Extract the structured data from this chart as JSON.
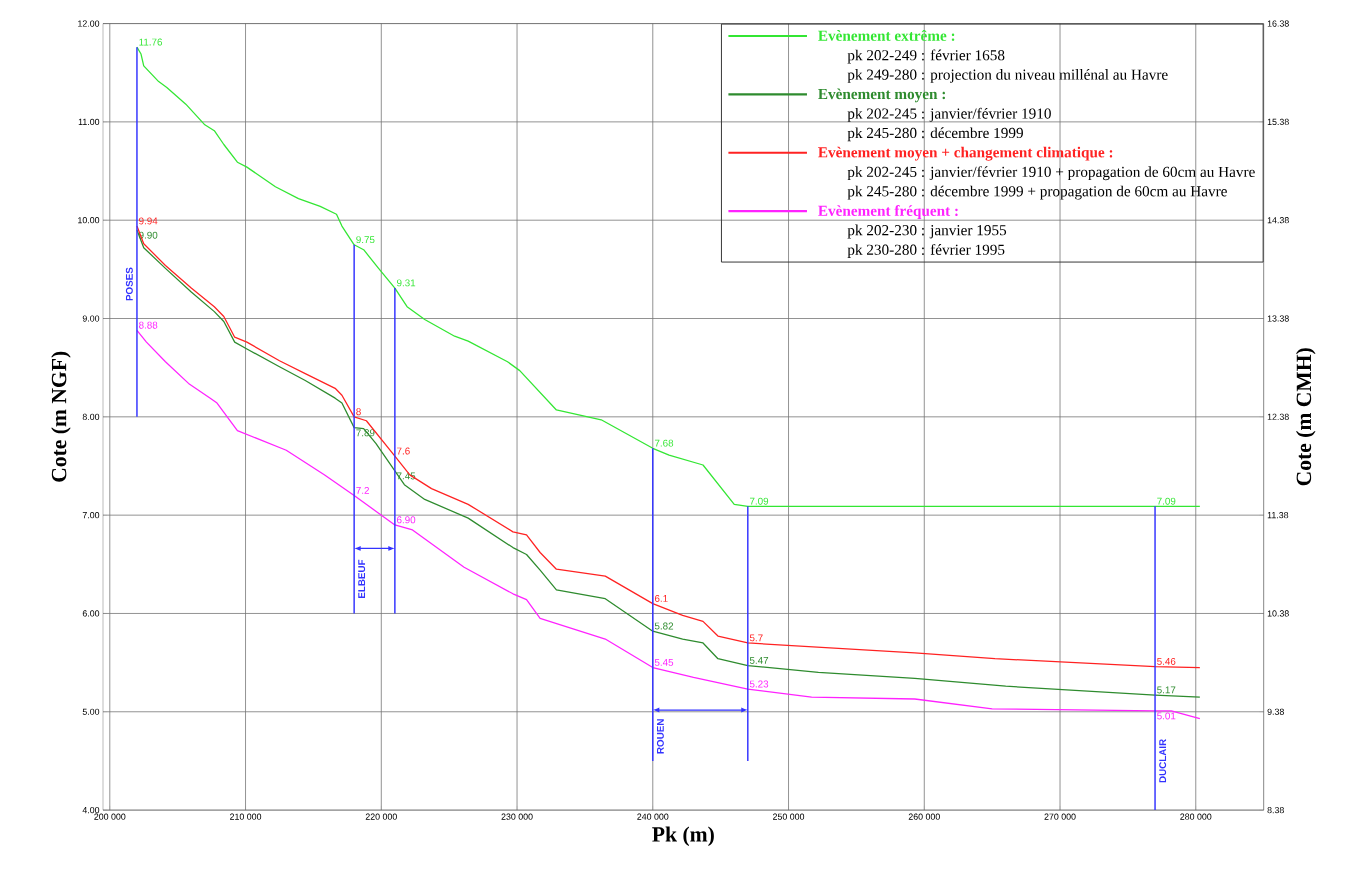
{
  "chart_data": {
    "type": "line",
    "xlabel": "Pk (m)",
    "ylabel": "Cote (m NGF)",
    "y2label": "Cote (m CMH)",
    "xlim": [
      199500,
      285000
    ],
    "xticks": [
      {
        "value": 200000,
        "label": "200 000"
      },
      {
        "value": 210000,
        "label": "210 000"
      },
      {
        "value": 220000,
        "label": "220 000"
      },
      {
        "value": 230000,
        "label": "230 000"
      },
      {
        "value": 240000,
        "label": "240 000"
      },
      {
        "value": 250000,
        "label": "250 000"
      },
      {
        "value": 260000,
        "label": "260 000"
      },
      {
        "value": 270000,
        "label": "270 000"
      },
      {
        "value": 280000,
        "label": "280 000"
      }
    ],
    "ylim": [
      4,
      12
    ],
    "yticks": [
      {
        "value": 4,
        "label": "4.00"
      },
      {
        "value": 5,
        "label": "5.00"
      },
      {
        "value": 6,
        "label": "6.00"
      },
      {
        "value": 7,
        "label": "7.00"
      },
      {
        "value": 8,
        "label": "8.00"
      },
      {
        "value": 9,
        "label": "9.00"
      },
      {
        "value": 10,
        "label": "10.00"
      },
      {
        "value": 11,
        "label": "11.00"
      },
      {
        "value": 12,
        "label": "12.00"
      }
    ],
    "y2lim": [
      8.38,
      16.38
    ],
    "y2ticks": [
      8.38,
      9.38,
      10.38,
      11.38,
      12.38,
      13.38,
      14.38,
      15.38,
      16.38
    ],
    "grid": true,
    "legend": "top right",
    "series": [
      {
        "name": "Evènement extrême :",
        "color": "#33e633",
        "x": [
          202000,
          202300,
          202500,
          203600,
          204200,
          205600,
          207000,
          207700,
          208400,
          209400,
          210100,
          212200,
          213900,
          215500,
          216700,
          217100,
          218000,
          218700,
          219800,
          221000,
          221900,
          223200,
          225400,
          226400,
          229300,
          230200,
          232900,
          236200,
          240000,
          241200,
          243700,
          246000,
          247000,
          277000,
          280300
        ],
        "values": [
          11.76,
          11.69,
          11.57,
          11.41,
          11.35,
          11.18,
          10.97,
          10.91,
          10.77,
          10.59,
          10.54,
          10.34,
          10.22,
          10.14,
          10.06,
          9.94,
          9.75,
          9.7,
          9.51,
          9.31,
          9.12,
          8.99,
          8.82,
          8.77,
          8.56,
          8.47,
          8.07,
          7.97,
          7.68,
          7.61,
          7.51,
          7.11,
          7.09,
          7.09,
          7.09
        ],
        "value_labels": [
          "11.76",
          null,
          null,
          null,
          null,
          null,
          null,
          null,
          null,
          null,
          null,
          null,
          null,
          null,
          null,
          null,
          "9.75",
          null,
          null,
          "9.31",
          null,
          null,
          null,
          null,
          null,
          null,
          null,
          null,
          "7.68",
          null,
          null,
          null,
          "7.09",
          "7.09",
          null
        ]
      },
      {
        "name": "Evènement moyen :",
        "color": "#2e8b2e",
        "x": [
          202000,
          202500,
          204100,
          206000,
          207700,
          208400,
          209200,
          210100,
          212500,
          214400,
          216600,
          217100,
          218000,
          218700,
          219600,
          221000,
          221700,
          223200,
          226400,
          229700,
          230700,
          231700,
          232900,
          236500,
          240000,
          242200,
          243700,
          244800,
          247000,
          252200,
          259300,
          266000,
          277000,
          280300
        ],
        "values": [
          9.9,
          9.72,
          9.51,
          9.27,
          9.07,
          8.97,
          8.76,
          8.69,
          8.51,
          8.37,
          8.19,
          8.14,
          7.89,
          7.88,
          7.73,
          7.45,
          7.31,
          7.16,
          6.97,
          6.67,
          6.6,
          6.44,
          6.24,
          6.15,
          5.82,
          5.74,
          5.7,
          5.54,
          5.47,
          5.4,
          5.34,
          5.26,
          5.17,
          5.15
        ],
        "value_labels": [
          "9.90",
          null,
          null,
          null,
          null,
          null,
          null,
          null,
          null,
          null,
          null,
          null,
          "7.89",
          null,
          null,
          "7.45",
          null,
          null,
          null,
          null,
          null,
          null,
          null,
          null,
          "5.82",
          null,
          null,
          null,
          "5.47",
          null,
          null,
          null,
          "5.17",
          null
        ]
      },
      {
        "name": "Evènement moyen + changement climatique :",
        "color": "#ff2222",
        "x": [
          202000,
          202500,
          204100,
          206000,
          207700,
          208400,
          209200,
          210100,
          212500,
          214400,
          216600,
          217100,
          218000,
          218900,
          221000,
          222100,
          223700,
          226400,
          229700,
          230700,
          231700,
          232900,
          236500,
          240000,
          242200,
          243700,
          244800,
          247000,
          259300,
          265200,
          277000,
          280300
        ],
        "values": [
          9.94,
          9.76,
          9.54,
          9.31,
          9.12,
          9.02,
          8.81,
          8.76,
          8.57,
          8.44,
          8.29,
          8.22,
          8.0,
          7.96,
          7.6,
          7.41,
          7.27,
          7.11,
          6.83,
          6.8,
          6.62,
          6.45,
          6.38,
          6.1,
          5.98,
          5.92,
          5.77,
          5.7,
          5.6,
          5.54,
          5.46,
          5.45
        ],
        "value_labels": [
          "9.94",
          null,
          null,
          null,
          null,
          null,
          null,
          null,
          null,
          null,
          null,
          null,
          "8",
          null,
          "7.6",
          null,
          null,
          null,
          null,
          null,
          null,
          null,
          null,
          "6.1",
          null,
          null,
          null,
          "5.7",
          null,
          null,
          "5.46",
          null
        ]
      },
      {
        "name": "Evènement fréquent :",
        "color": "#ff22ff",
        "x": [
          202000,
          202700,
          204100,
          205800,
          207400,
          207900,
          209400,
          213000,
          215800,
          218000,
          219600,
          221000,
          222300,
          226100,
          229700,
          230700,
          231700,
          236500,
          240000,
          243000,
          247000,
          251700,
          259300,
          265000,
          277000,
          278200,
          280300
        ],
        "values": [
          8.88,
          8.76,
          8.56,
          8.34,
          8.19,
          8.14,
          7.86,
          7.66,
          7.41,
          7.2,
          7.04,
          6.9,
          6.85,
          6.47,
          6.2,
          6.14,
          5.95,
          5.74,
          5.45,
          5.35,
          5.23,
          5.15,
          5.13,
          5.03,
          5.01,
          5.01,
          4.93
        ],
        "value_labels": [
          "8.88",
          null,
          null,
          null,
          null,
          null,
          null,
          null,
          null,
          "7.2",
          null,
          "6.90",
          null,
          null,
          null,
          null,
          null,
          null,
          "5.45",
          null,
          "5.23",
          null,
          null,
          null,
          "5.01",
          null,
          null
        ]
      },
      {
        "color": "#3333ff",
        "x": [
          202000,
          202000
        ],
        "values": [
          8.0,
          11.76
        ]
      },
      {
        "color": "#3333ff",
        "x": [
          218000,
          218000
        ],
        "values": [
          6.0,
          9.75
        ]
      },
      {
        "color": "#3333ff",
        "x": [
          221000,
          221000
        ],
        "values": [
          6.0,
          9.31
        ]
      },
      {
        "color": "#3333ff",
        "x": [
          240000,
          240000
        ],
        "values": [
          4.5,
          7.68
        ]
      },
      {
        "color": "#3333ff",
        "x": [
          247000,
          247000
        ],
        "values": [
          4.5,
          7.09
        ]
      },
      {
        "color": "#3333ff",
        "x": [
          277000,
          277000
        ],
        "values": [
          4.0,
          7.09
        ]
      }
    ],
    "annotations": [
      "pk 202-249 : février 1658",
      "pk 249-280 : projection du niveau millénal au Havre",
      "pk 202-245 : janvier/février 1910",
      "pk 245-280 : décembre 1999",
      "pk 202-245 : janvier/février 1910 + propagation de 60cm au Havre",
      "pk 245-280 : décembre 1999 + propagation de 60cm au Havre",
      "pk 202-230 : janvier 1955",
      "pk 230-280 : février 1995",
      {
        "text": "POSES",
        "x": 202000,
        "y": 9.35
      },
      {
        "text": "ELBEUF",
        "x": 218000,
        "y": 6.35
      },
      {
        "text": "ROUEN",
        "x": 240000,
        "y": 4.75
      },
      {
        "text": "DUCLAIR",
        "x": 277000,
        "y": 4.5
      }
    ]
  }
}
